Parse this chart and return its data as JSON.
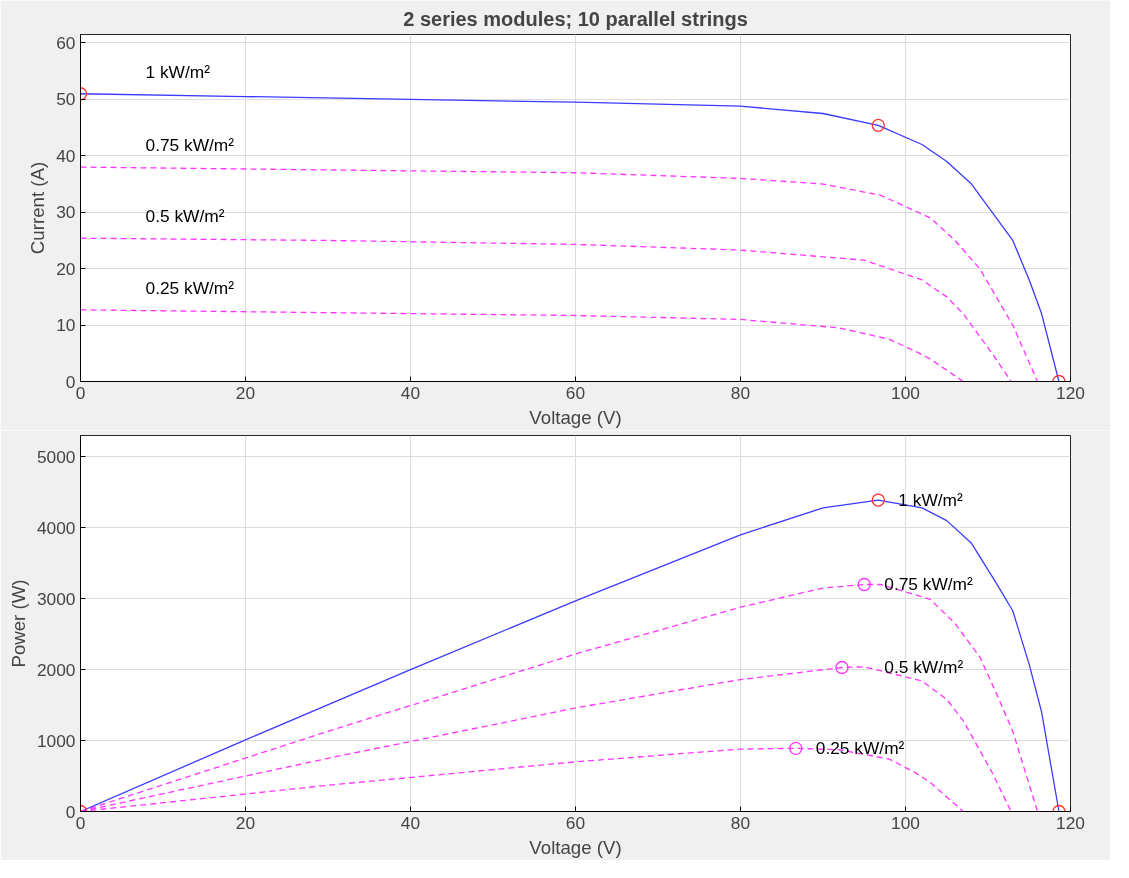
{
  "chart_data": [
    {
      "type": "line",
      "title": "2 series modules; 10 parallel strings",
      "xlabel": "Voltage (V)",
      "ylabel": "Current (A)",
      "xlim": [
        0,
        120
      ],
      "xticks": [
        0,
        20,
        40,
        60,
        80,
        100,
        120
      ],
      "ylim": [
        0,
        61.5
      ],
      "yticks": [
        0,
        10,
        20,
        30,
        40,
        50,
        60
      ],
      "grid": true,
      "series": [
        {
          "name": "1 kW/m²",
          "line_style": "solid",
          "color": "#3b3bff",
          "x": [
            0,
            20,
            40,
            60,
            80,
            90,
            96.7,
            102,
            105,
            108,
            111,
            113,
            115,
            116.5,
            118.6
          ],
          "values": [
            51,
            50.5,
            50,
            49.5,
            48.8,
            47.5,
            45.4,
            42,
            39,
            35,
            29,
            25,
            18,
            12,
            0
          ]
        },
        {
          "name": "0.75 kW/m²",
          "line_style": "dashed",
          "color": "#ff33ff",
          "x": [
            0,
            30,
            60,
            80,
            90,
            97,
            103,
            106,
            109,
            111,
            113,
            116
          ],
          "values": [
            38,
            37.5,
            37,
            36,
            35,
            33,
            29,
            25,
            20,
            15,
            10,
            0
          ]
        },
        {
          "name": "0.5 kW/m²",
          "line_style": "dashed",
          "color": "#ff33ff",
          "x": [
            0,
            30,
            60,
            80,
            95,
            102,
            105,
            107,
            110.5,
            112.8
          ],
          "values": [
            25.4,
            25,
            24.3,
            23.3,
            21.5,
            18,
            15,
            12,
            5,
            0
          ]
        },
        {
          "name": "0.25 kW/m²",
          "line_style": "dashed",
          "color": "#ff33ff",
          "x": [
            0,
            30,
            60,
            80,
            92,
            98,
            101,
            103,
            107
          ],
          "values": [
            12.7,
            12.2,
            11.7,
            11,
            9.5,
            7.5,
            5.5,
            4,
            0
          ]
        },
        {
          "type": "scatter",
          "marker": "circle",
          "color": "#ff3333",
          "x": [
            0,
            96.7,
            118.6
          ],
          "values": [
            51,
            45.4,
            0
          ]
        }
      ]
    },
    {
      "type": "line",
      "xlabel": "Voltage (V)",
      "ylabel": "Power (W)",
      "xlim": [
        0,
        120
      ],
      "xticks": [
        0,
        20,
        40,
        60,
        80,
        100,
        120
      ],
      "ylim": [
        0,
        5300
      ],
      "yticks": [
        0,
        1000,
        2000,
        3000,
        4000,
        5000
      ],
      "grid": true,
      "series": [
        {
          "name": "1 kW/m²",
          "line_style": "solid",
          "color": "#3b3bff",
          "x": [
            0,
            20,
            40,
            60,
            80,
            90,
            96.7,
            102,
            105,
            108,
            111,
            113,
            115,
            116.5,
            118.6
          ],
          "values": [
            0,
            1010,
            2000,
            2970,
            3900,
            4280,
            4390,
            4280,
            4100,
            3780,
            3220,
            2830,
            2070,
            1400,
            0
          ]
        },
        {
          "name": "0.75 kW/m²",
          "line_style": "dashed",
          "color": "#ff33ff",
          "x": [
            0,
            30,
            60,
            80,
            90,
            95,
            97,
            103,
            106,
            109,
            111,
            113,
            116
          ],
          "values": [
            0,
            1130,
            2220,
            2880,
            3150,
            3200,
            3200,
            2990,
            2650,
            2180,
            1670,
            1130,
            0
          ]
        },
        {
          "name": "0.5 kW/m²",
          "line_style": "dashed",
          "color": "#ff33ff",
          "x": [
            0,
            30,
            60,
            80,
            92.3,
            95,
            102,
            105,
            107,
            110.5,
            112.8
          ],
          "values": [
            0,
            750,
            1460,
            1860,
            2030,
            2040,
            1840,
            1580,
            1280,
            550,
            0
          ]
        },
        {
          "name": "0.25 kW/m²",
          "line_style": "dashed",
          "color": "#ff33ff",
          "x": [
            0,
            30,
            60,
            80,
            86.7,
            92,
            98,
            101,
            103,
            107
          ],
          "values": [
            0,
            370,
            700,
            880,
            890,
            870,
            740,
            560,
            410,
            0
          ]
        },
        {
          "type": "scatter",
          "marker": "circle",
          "color": "#ff3333",
          "x": [
            0,
            96.7,
            118.6
          ],
          "values": [
            0,
            4390,
            0
          ]
        },
        {
          "type": "scatter",
          "marker": "circle",
          "color": "#ff33ff",
          "x": [
            95,
            92.3,
            86.7
          ],
          "values": [
            3200,
            2030,
            890
          ]
        }
      ]
    }
  ]
}
